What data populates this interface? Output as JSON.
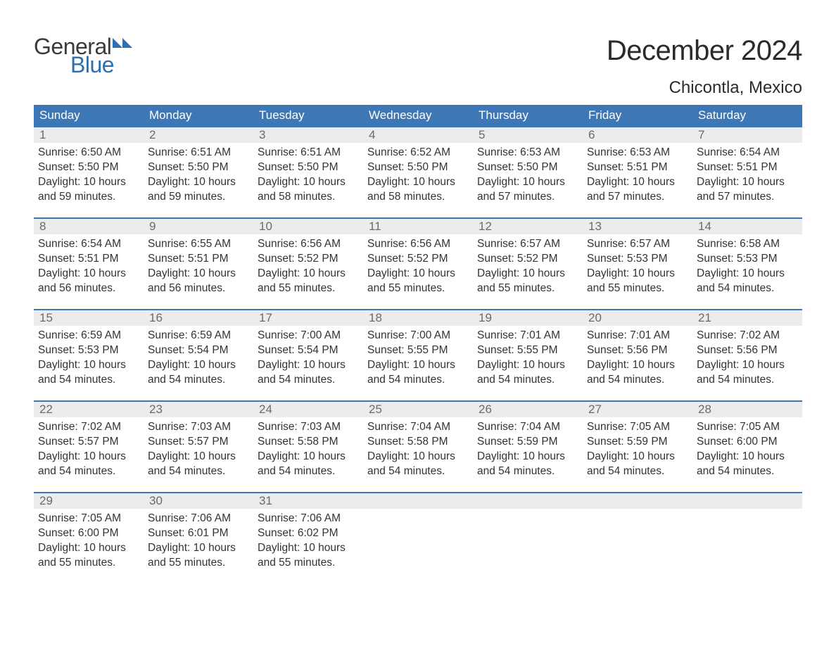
{
  "logo": {
    "word1": "General",
    "word2": "Blue",
    "word1_color": "#3a3a3a",
    "word2_color": "#2f6fb0",
    "flag_color": "#2f6fb0"
  },
  "title": {
    "month": "December 2024",
    "location": "Chicontla, Mexico",
    "month_fontsize": 40,
    "location_fontsize": 24,
    "text_color": "#2b2b2b"
  },
  "calendar": {
    "weekday_bg": "#3d77b6",
    "weekday_text_color": "#ffffff",
    "week_border_color": "#3d77b6",
    "daynum_bg": "#ececec",
    "daynum_color": "#6b6b6b",
    "body_text_color": "#333333",
    "background_color": "#ffffff",
    "weekdays": [
      "Sunday",
      "Monday",
      "Tuesday",
      "Wednesday",
      "Thursday",
      "Friday",
      "Saturday"
    ],
    "weeks": [
      [
        {
          "day": "1",
          "sunrise": "Sunrise: 6:50 AM",
          "sunset": "Sunset: 5:50 PM",
          "daylight1": "Daylight: 10 hours",
          "daylight2": "and 59 minutes."
        },
        {
          "day": "2",
          "sunrise": "Sunrise: 6:51 AM",
          "sunset": "Sunset: 5:50 PM",
          "daylight1": "Daylight: 10 hours",
          "daylight2": "and 59 minutes."
        },
        {
          "day": "3",
          "sunrise": "Sunrise: 6:51 AM",
          "sunset": "Sunset: 5:50 PM",
          "daylight1": "Daylight: 10 hours",
          "daylight2": "and 58 minutes."
        },
        {
          "day": "4",
          "sunrise": "Sunrise: 6:52 AM",
          "sunset": "Sunset: 5:50 PM",
          "daylight1": "Daylight: 10 hours",
          "daylight2": "and 58 minutes."
        },
        {
          "day": "5",
          "sunrise": "Sunrise: 6:53 AM",
          "sunset": "Sunset: 5:50 PM",
          "daylight1": "Daylight: 10 hours",
          "daylight2": "and 57 minutes."
        },
        {
          "day": "6",
          "sunrise": "Sunrise: 6:53 AM",
          "sunset": "Sunset: 5:51 PM",
          "daylight1": "Daylight: 10 hours",
          "daylight2": "and 57 minutes."
        },
        {
          "day": "7",
          "sunrise": "Sunrise: 6:54 AM",
          "sunset": "Sunset: 5:51 PM",
          "daylight1": "Daylight: 10 hours",
          "daylight2": "and 57 minutes."
        }
      ],
      [
        {
          "day": "8",
          "sunrise": "Sunrise: 6:54 AM",
          "sunset": "Sunset: 5:51 PM",
          "daylight1": "Daylight: 10 hours",
          "daylight2": "and 56 minutes."
        },
        {
          "day": "9",
          "sunrise": "Sunrise: 6:55 AM",
          "sunset": "Sunset: 5:51 PM",
          "daylight1": "Daylight: 10 hours",
          "daylight2": "and 56 minutes."
        },
        {
          "day": "10",
          "sunrise": "Sunrise: 6:56 AM",
          "sunset": "Sunset: 5:52 PM",
          "daylight1": "Daylight: 10 hours",
          "daylight2": "and 55 minutes."
        },
        {
          "day": "11",
          "sunrise": "Sunrise: 6:56 AM",
          "sunset": "Sunset: 5:52 PM",
          "daylight1": "Daylight: 10 hours",
          "daylight2": "and 55 minutes."
        },
        {
          "day": "12",
          "sunrise": "Sunrise: 6:57 AM",
          "sunset": "Sunset: 5:52 PM",
          "daylight1": "Daylight: 10 hours",
          "daylight2": "and 55 minutes."
        },
        {
          "day": "13",
          "sunrise": "Sunrise: 6:57 AM",
          "sunset": "Sunset: 5:53 PM",
          "daylight1": "Daylight: 10 hours",
          "daylight2": "and 55 minutes."
        },
        {
          "day": "14",
          "sunrise": "Sunrise: 6:58 AM",
          "sunset": "Sunset: 5:53 PM",
          "daylight1": "Daylight: 10 hours",
          "daylight2": "and 54 minutes."
        }
      ],
      [
        {
          "day": "15",
          "sunrise": "Sunrise: 6:59 AM",
          "sunset": "Sunset: 5:53 PM",
          "daylight1": "Daylight: 10 hours",
          "daylight2": "and 54 minutes."
        },
        {
          "day": "16",
          "sunrise": "Sunrise: 6:59 AM",
          "sunset": "Sunset: 5:54 PM",
          "daylight1": "Daylight: 10 hours",
          "daylight2": "and 54 minutes."
        },
        {
          "day": "17",
          "sunrise": "Sunrise: 7:00 AM",
          "sunset": "Sunset: 5:54 PM",
          "daylight1": "Daylight: 10 hours",
          "daylight2": "and 54 minutes."
        },
        {
          "day": "18",
          "sunrise": "Sunrise: 7:00 AM",
          "sunset": "Sunset: 5:55 PM",
          "daylight1": "Daylight: 10 hours",
          "daylight2": "and 54 minutes."
        },
        {
          "day": "19",
          "sunrise": "Sunrise: 7:01 AM",
          "sunset": "Sunset: 5:55 PM",
          "daylight1": "Daylight: 10 hours",
          "daylight2": "and 54 minutes."
        },
        {
          "day": "20",
          "sunrise": "Sunrise: 7:01 AM",
          "sunset": "Sunset: 5:56 PM",
          "daylight1": "Daylight: 10 hours",
          "daylight2": "and 54 minutes."
        },
        {
          "day": "21",
          "sunrise": "Sunrise: 7:02 AM",
          "sunset": "Sunset: 5:56 PM",
          "daylight1": "Daylight: 10 hours",
          "daylight2": "and 54 minutes."
        }
      ],
      [
        {
          "day": "22",
          "sunrise": "Sunrise: 7:02 AM",
          "sunset": "Sunset: 5:57 PM",
          "daylight1": "Daylight: 10 hours",
          "daylight2": "and 54 minutes."
        },
        {
          "day": "23",
          "sunrise": "Sunrise: 7:03 AM",
          "sunset": "Sunset: 5:57 PM",
          "daylight1": "Daylight: 10 hours",
          "daylight2": "and 54 minutes."
        },
        {
          "day": "24",
          "sunrise": "Sunrise: 7:03 AM",
          "sunset": "Sunset: 5:58 PM",
          "daylight1": "Daylight: 10 hours",
          "daylight2": "and 54 minutes."
        },
        {
          "day": "25",
          "sunrise": "Sunrise: 7:04 AM",
          "sunset": "Sunset: 5:58 PM",
          "daylight1": "Daylight: 10 hours",
          "daylight2": "and 54 minutes."
        },
        {
          "day": "26",
          "sunrise": "Sunrise: 7:04 AM",
          "sunset": "Sunset: 5:59 PM",
          "daylight1": "Daylight: 10 hours",
          "daylight2": "and 54 minutes."
        },
        {
          "day": "27",
          "sunrise": "Sunrise: 7:05 AM",
          "sunset": "Sunset: 5:59 PM",
          "daylight1": "Daylight: 10 hours",
          "daylight2": "and 54 minutes."
        },
        {
          "day": "28",
          "sunrise": "Sunrise: 7:05 AM",
          "sunset": "Sunset: 6:00 PM",
          "daylight1": "Daylight: 10 hours",
          "daylight2": "and 54 minutes."
        }
      ],
      [
        {
          "day": "29",
          "sunrise": "Sunrise: 7:05 AM",
          "sunset": "Sunset: 6:00 PM",
          "daylight1": "Daylight: 10 hours",
          "daylight2": "and 55 minutes."
        },
        {
          "day": "30",
          "sunrise": "Sunrise: 7:06 AM",
          "sunset": "Sunset: 6:01 PM",
          "daylight1": "Daylight: 10 hours",
          "daylight2": "and 55 minutes."
        },
        {
          "day": "31",
          "sunrise": "Sunrise: 7:06 AM",
          "sunset": "Sunset: 6:02 PM",
          "daylight1": "Daylight: 10 hours",
          "daylight2": "and 55 minutes."
        },
        {
          "empty": true
        },
        {
          "empty": true
        },
        {
          "empty": true
        },
        {
          "empty": true
        }
      ]
    ]
  }
}
